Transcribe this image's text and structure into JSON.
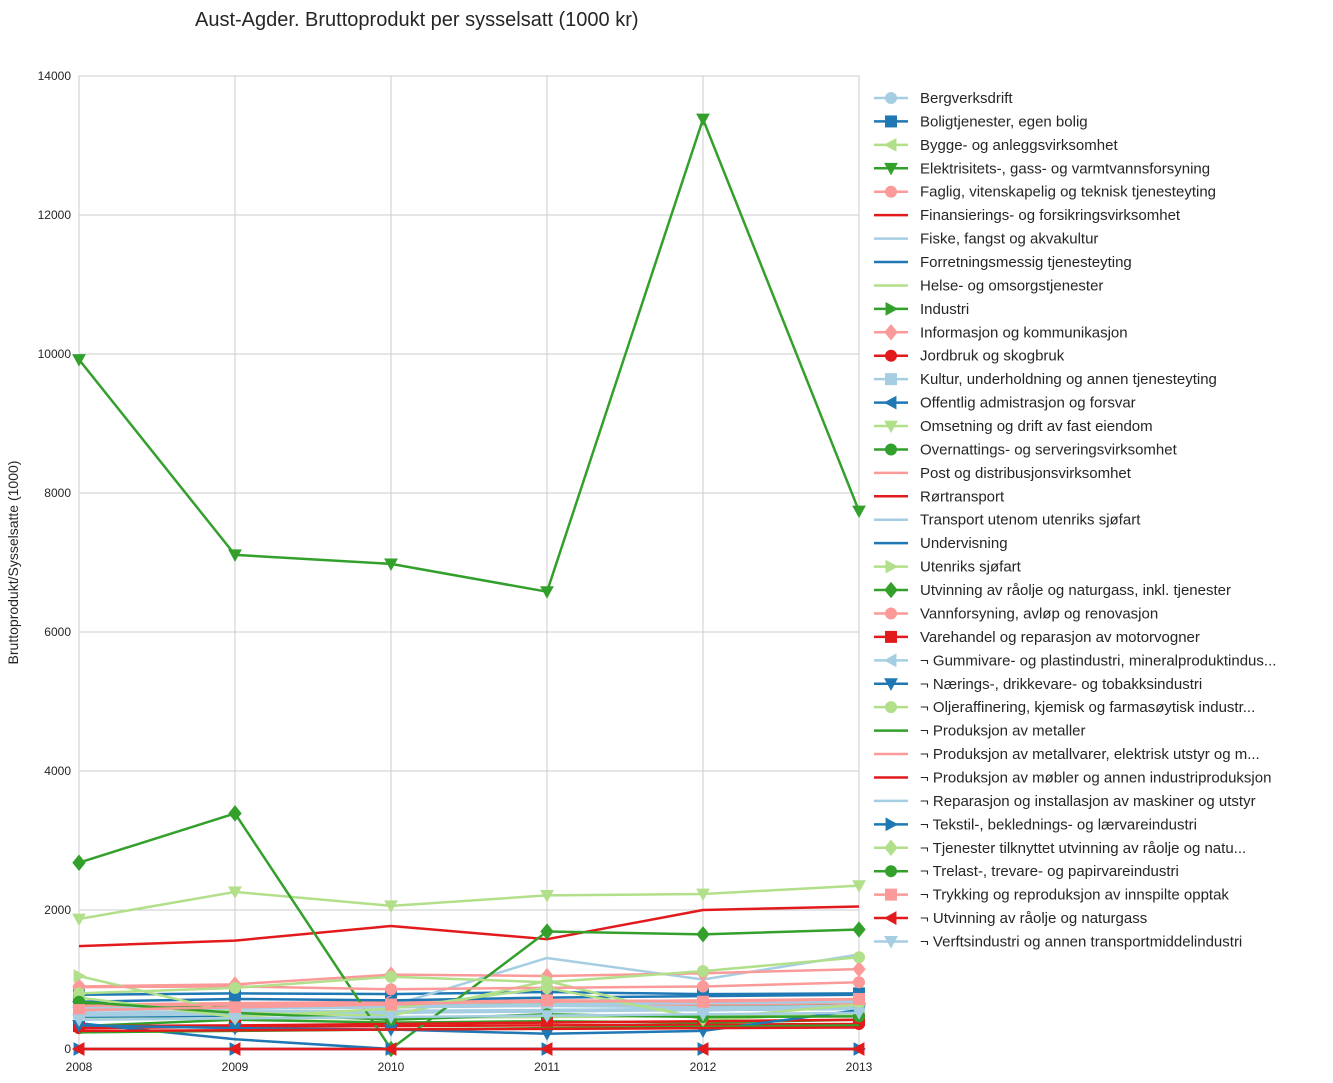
{
  "chart_data": {
    "type": "line",
    "title": "Aust-Agder. Bruttoprodukt per sysselsatt (1000 kr)",
    "xlabel": "",
    "ylabel": "Bruttoprodukt/Sysselsatte (1000)",
    "x": [
      2008,
      2009,
      2010,
      2011,
      2012,
      2013
    ],
    "xlim": [
      2008,
      2013
    ],
    "ylim": [
      0,
      14000
    ],
    "yticks": [
      0,
      2000,
      4000,
      6000,
      8000,
      10000,
      12000,
      14000
    ],
    "grid": true,
    "legend_position": "right-outside",
    "series": [
      {
        "name": "Bergverksdrift",
        "color": "#a6cee3",
        "marker": "circle",
        "values": [
          500,
          520,
          540,
          560,
          580,
          600
        ]
      },
      {
        "name": "Boligtjenester, egen bolig",
        "color": "#1f78b4",
        "marker": "square",
        "values": [
          780,
          800,
          790,
          820,
          790,
          800
        ]
      },
      {
        "name": "Bygge- og anleggsvirksomhet",
        "color": "#b2df8a",
        "marker": "triangle-left",
        "values": [
          620,
          640,
          650,
          660,
          670,
          680
        ]
      },
      {
        "name": "Elektrisitets-, gass- og varmtvannsforsyning",
        "color": "#33a02c",
        "marker": "triangle-down",
        "values": [
          9920,
          7110,
          6980,
          6580,
          13380,
          7740
        ]
      },
      {
        "name": "Faglig, vitenskapelig og teknisk tjenesteyting",
        "color": "#fb9a99",
        "marker": "circle",
        "values": [
          640,
          660,
          680,
          700,
          690,
          700
        ]
      },
      {
        "name": "Finansierings- og forsikringsvirksomhet",
        "color": "#e31a1c",
        "marker": "none",
        "values": [
          1480,
          1560,
          1770,
          1580,
          2000,
          2050
        ]
      },
      {
        "name": "Fiske, fangst og akvakultur",
        "color": "#a6cee3",
        "marker": "none",
        "values": [
          560,
          620,
          620,
          1310,
          1000,
          1360
        ]
      },
      {
        "name": "Forretningsmessig tjenesteyting",
        "color": "#1f78b4",
        "marker": "none",
        "values": [
          460,
          480,
          520,
          560,
          560,
          580
        ]
      },
      {
        "name": "Helse- og omsorgstjenester",
        "color": "#b2df8a",
        "marker": "none",
        "values": [
          430,
          440,
          450,
          460,
          470,
          480
        ]
      },
      {
        "name": "Industri",
        "color": "#33a02c",
        "marker": "triangle-right",
        "values": [
          640,
          600,
          620,
          640,
          620,
          660
        ]
      },
      {
        "name": "Informasjon og kommunikasjon",
        "color": "#fb9a99",
        "marker": "diamond",
        "values": [
          900,
          930,
          1070,
          1050,
          1090,
          1150
        ]
      },
      {
        "name": "Jordbruk og skogbruk",
        "color": "#e31a1c",
        "marker": "circle",
        "values": [
          300,
          320,
          330,
          340,
          350,
          360
        ]
      },
      {
        "name": "Kultur, underholdning og annen tjenesteyting",
        "color": "#a6cee3",
        "marker": "square",
        "values": [
          520,
          540,
          550,
          560,
          570,
          580
        ]
      },
      {
        "name": "Offentlig admistrasjon og forsvar",
        "color": "#1f78b4",
        "marker": "triangle-left",
        "values": [
          680,
          720,
          700,
          740,
          760,
          780
        ]
      },
      {
        "name": "Omsetning og drift av fast eiendom",
        "color": "#b2df8a",
        "marker": "triangle-down",
        "values": [
          1870,
          2260,
          2060,
          2210,
          2230,
          2350
        ]
      },
      {
        "name": "Overnattings- og serveringsvirksomhet",
        "color": "#33a02c",
        "marker": "circle",
        "values": [
          330,
          420,
          380,
          400,
          380,
          420
        ]
      },
      {
        "name": "Post og distribusjonsvirksomhet",
        "color": "#fb9a99",
        "marker": "none",
        "values": [
          560,
          580,
          600,
          620,
          640,
          660
        ]
      },
      {
        "name": "Rørtransport",
        "color": "#e31a1c",
        "marker": "none",
        "values": [
          0,
          0,
          0,
          0,
          0,
          0
        ]
      },
      {
        "name": "Transport utenom utenriks sjøfart",
        "color": "#a6cee3",
        "marker": "none",
        "values": [
          480,
          500,
          520,
          540,
          560,
          580
        ]
      },
      {
        "name": "Undervisning",
        "color": "#1f78b4",
        "marker": "none",
        "values": [
          370,
          140,
          0,
          0,
          0,
          0
        ]
      },
      {
        "name": "Utenriks sjøfart",
        "color": "#b2df8a",
        "marker": "triangle-right",
        "values": [
          1050,
          520,
          480,
          980,
          420,
          520
        ]
      },
      {
        "name": "Utvinning av råolje og naturgass, inkl. tjenester",
        "color": "#33a02c",
        "marker": "diamond",
        "values": [
          2680,
          3390,
          0,
          1690,
          1650,
          1720
        ]
      },
      {
        "name": "Vannforsyning, avløp og renovasjon",
        "color": "#fb9a99",
        "marker": "circle",
        "values": [
          890,
          900,
          860,
          880,
          900,
          960
        ]
      },
      {
        "name": "Varehandel og reparasjon av motorvogner",
        "color": "#e31a1c",
        "marker": "square",
        "values": [
          330,
          340,
          360,
          380,
          400,
          420
        ]
      },
      {
        "name": "¬ Gummivare- og plastindustri, mineralproduktindus...",
        "color": "#a6cee3",
        "marker": "triangle-left",
        "values": [
          600,
          580,
          620,
          640,
          660,
          680
        ]
      },
      {
        "name": "¬ Nærings-, drikkevare- og tobakksindustri",
        "color": "#1f78b4",
        "marker": "triangle-down",
        "values": [
          340,
          300,
          280,
          220,
          260,
          560
        ]
      },
      {
        "name": "¬ Oljeraffinering, kjemisk og farmasøytisk industr...",
        "color": "#b2df8a",
        "marker": "circle",
        "values": [
          800,
          880,
          1040,
          960,
          1120,
          1320
        ]
      },
      {
        "name": "¬ Produksjon av metaller",
        "color": "#33a02c",
        "marker": "none",
        "values": [
          240,
          260,
          280,
          300,
          320,
          340
        ]
      },
      {
        "name": "¬ Produksjon av metallvarer, elektrisk utstyr og m...",
        "color": "#fb9a99",
        "marker": "none",
        "values": [
          620,
          640,
          660,
          680,
          700,
          720
        ]
      },
      {
        "name": "¬ Produksjon av møbler og annen industriproduksjon",
        "color": "#e31a1c",
        "marker": "none",
        "values": [
          260,
          270,
          280,
          290,
          300,
          310
        ]
      },
      {
        "name": "¬ Reparasjon og installasjon av maskiner og utstyr",
        "color": "#a6cee3",
        "marker": "none",
        "values": [
          560,
          580,
          600,
          620,
          600,
          620
        ]
      },
      {
        "name": "¬ Tekstil-, beklednings- og lærvareindustri",
        "color": "#1f78b4",
        "marker": "triangle-right",
        "values": [
          0,
          0,
          0,
          0,
          0,
          0
        ]
      },
      {
        "name": "¬ Tjenester tilknyttet utvinning av råolje og natu...",
        "color": "#b2df8a",
        "marker": "diamond",
        "values": [
          740,
          460,
          580,
          880,
          440,
          640
        ]
      },
      {
        "name": "¬ Trelast-, trevare- og papirvareindustri",
        "color": "#33a02c",
        "marker": "circle",
        "values": [
          680,
          520,
          420,
          500,
          460,
          470
        ]
      },
      {
        "name": "¬ Trykking og reproduksjon av innspilte opptak",
        "color": "#fb9a99",
        "marker": "square",
        "values": [
          560,
          600,
          640,
          700,
          680,
          720
        ]
      },
      {
        "name": "¬ Utvinning av råolje og naturgass",
        "color": "#e31a1c",
        "marker": "triangle-left",
        "values": [
          0,
          0,
          0,
          0,
          0,
          0
        ]
      },
      {
        "name": "¬ Verftsindustri og annen transportmiddelindustri",
        "color": "#a6cee3",
        "marker": "triangle-down",
        "values": [
          420,
          440,
          460,
          480,
          500,
          520
        ]
      }
    ]
  }
}
